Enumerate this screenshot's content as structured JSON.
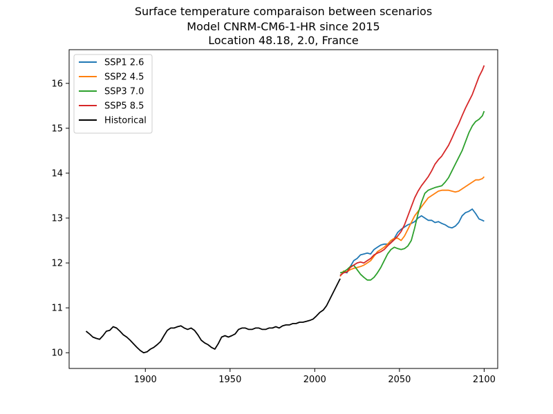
{
  "chart_data": {
    "type": "line",
    "title_lines": [
      "Surface temperature comparaison between scenarios",
      "Model CNRM-CM6-1-HR since 2015",
      "Location 48.18, 2.0, France"
    ],
    "xlabel": "",
    "ylabel": "",
    "xlim": [
      1855,
      2108
    ],
    "ylim": [
      9.65,
      16.75
    ],
    "xticks": [
      1900,
      1950,
      2000,
      2050,
      2100
    ],
    "yticks": [
      10,
      11,
      12,
      13,
      14,
      15,
      16
    ],
    "legend_position": "top-left",
    "series": [
      {
        "name": "SSP1 2.6",
        "color": "#1f77b4",
        "points": [
          [
            2015,
            11.72
          ],
          [
            2017,
            11.8
          ],
          [
            2019,
            11.78
          ],
          [
            2021,
            11.92
          ],
          [
            2023,
            12.05
          ],
          [
            2025,
            12.1
          ],
          [
            2027,
            12.18
          ],
          [
            2029,
            12.2
          ],
          [
            2031,
            12.22
          ],
          [
            2033,
            12.2
          ],
          [
            2035,
            12.3
          ],
          [
            2037,
            12.35
          ],
          [
            2039,
            12.4
          ],
          [
            2041,
            12.42
          ],
          [
            2043,
            12.42
          ],
          [
            2045,
            12.45
          ],
          [
            2047,
            12.55
          ],
          [
            2049,
            12.68
          ],
          [
            2051,
            12.75
          ],
          [
            2053,
            12.8
          ],
          [
            2055,
            12.85
          ],
          [
            2057,
            12.88
          ],
          [
            2059,
            12.92
          ],
          [
            2061,
            13.0
          ],
          [
            2063,
            13.05
          ],
          [
            2065,
            13.0
          ],
          [
            2067,
            12.95
          ],
          [
            2069,
            12.95
          ],
          [
            2071,
            12.9
          ],
          [
            2073,
            12.92
          ],
          [
            2075,
            12.88
          ],
          [
            2077,
            12.85
          ],
          [
            2079,
            12.8
          ],
          [
            2081,
            12.78
          ],
          [
            2083,
            12.82
          ],
          [
            2085,
            12.9
          ],
          [
            2087,
            13.05
          ],
          [
            2089,
            13.12
          ],
          [
            2091,
            13.15
          ],
          [
            2093,
            13.2
          ],
          [
            2095,
            13.1
          ],
          [
            2097,
            12.98
          ],
          [
            2099,
            12.95
          ],
          [
            2100,
            12.93
          ]
        ]
      },
      {
        "name": "SSP2 4.5",
        "color": "#ff7f0e",
        "points": [
          [
            2015,
            11.7
          ],
          [
            2017,
            11.82
          ],
          [
            2019,
            11.8
          ],
          [
            2021,
            11.85
          ],
          [
            2023,
            11.88
          ],
          [
            2025,
            11.9
          ],
          [
            2027,
            11.92
          ],
          [
            2029,
            11.95
          ],
          [
            2031,
            12.0
          ],
          [
            2033,
            12.05
          ],
          [
            2035,
            12.15
          ],
          [
            2037,
            12.25
          ],
          [
            2039,
            12.3
          ],
          [
            2041,
            12.35
          ],
          [
            2043,
            12.42
          ],
          [
            2045,
            12.5
          ],
          [
            2047,
            12.55
          ],
          [
            2049,
            12.55
          ],
          [
            2051,
            12.5
          ],
          [
            2053,
            12.6
          ],
          [
            2055,
            12.75
          ],
          [
            2057,
            12.9
          ],
          [
            2059,
            13.05
          ],
          [
            2061,
            13.15
          ],
          [
            2063,
            13.25
          ],
          [
            2065,
            13.35
          ],
          [
            2067,
            13.45
          ],
          [
            2069,
            13.5
          ],
          [
            2071,
            13.55
          ],
          [
            2073,
            13.6
          ],
          [
            2075,
            13.62
          ],
          [
            2077,
            13.62
          ],
          [
            2079,
            13.62
          ],
          [
            2081,
            13.6
          ],
          [
            2083,
            13.58
          ],
          [
            2085,
            13.6
          ],
          [
            2087,
            13.65
          ],
          [
            2089,
            13.7
          ],
          [
            2091,
            13.75
          ],
          [
            2093,
            13.8
          ],
          [
            2095,
            13.85
          ],
          [
            2097,
            13.85
          ],
          [
            2099,
            13.88
          ],
          [
            2100,
            13.92
          ]
        ]
      },
      {
        "name": "SSP3 7.0",
        "color": "#2ca02c",
        "points": [
          [
            2015,
            11.78
          ],
          [
            2017,
            11.8
          ],
          [
            2019,
            11.85
          ],
          [
            2021,
            11.92
          ],
          [
            2023,
            11.95
          ],
          [
            2025,
            11.85
          ],
          [
            2027,
            11.75
          ],
          [
            2029,
            11.68
          ],
          [
            2031,
            11.62
          ],
          [
            2033,
            11.62
          ],
          [
            2035,
            11.68
          ],
          [
            2037,
            11.78
          ],
          [
            2039,
            11.9
          ],
          [
            2041,
            12.05
          ],
          [
            2043,
            12.2
          ],
          [
            2045,
            12.3
          ],
          [
            2047,
            12.35
          ],
          [
            2049,
            12.32
          ],
          [
            2051,
            12.3
          ],
          [
            2053,
            12.32
          ],
          [
            2055,
            12.38
          ],
          [
            2057,
            12.5
          ],
          [
            2059,
            12.78
          ],
          [
            2061,
            13.1
          ],
          [
            2063,
            13.35
          ],
          [
            2065,
            13.55
          ],
          [
            2067,
            13.62
          ],
          [
            2069,
            13.65
          ],
          [
            2071,
            13.68
          ],
          [
            2073,
            13.7
          ],
          [
            2075,
            13.72
          ],
          [
            2077,
            13.8
          ],
          [
            2079,
            13.9
          ],
          [
            2081,
            14.05
          ],
          [
            2083,
            14.2
          ],
          [
            2085,
            14.35
          ],
          [
            2087,
            14.5
          ],
          [
            2089,
            14.7
          ],
          [
            2091,
            14.9
          ],
          [
            2093,
            15.05
          ],
          [
            2095,
            15.15
          ],
          [
            2097,
            15.2
          ],
          [
            2099,
            15.28
          ],
          [
            2100,
            15.38
          ]
        ]
      },
      {
        "name": "SSP5 8.5",
        "color": "#d62728",
        "points": [
          [
            2015,
            11.72
          ],
          [
            2017,
            11.78
          ],
          [
            2019,
            11.8
          ],
          [
            2021,
            11.9
          ],
          [
            2023,
            11.95
          ],
          [
            2025,
            12.0
          ],
          [
            2027,
            12.02
          ],
          [
            2029,
            12.0
          ],
          [
            2031,
            12.05
          ],
          [
            2033,
            12.1
          ],
          [
            2035,
            12.18
          ],
          [
            2037,
            12.22
          ],
          [
            2039,
            12.25
          ],
          [
            2041,
            12.3
          ],
          [
            2043,
            12.38
          ],
          [
            2045,
            12.45
          ],
          [
            2047,
            12.52
          ],
          [
            2049,
            12.6
          ],
          [
            2051,
            12.7
          ],
          [
            2053,
            12.85
          ],
          [
            2055,
            13.05
          ],
          [
            2057,
            13.25
          ],
          [
            2059,
            13.45
          ],
          [
            2061,
            13.6
          ],
          [
            2063,
            13.72
          ],
          [
            2065,
            13.82
          ],
          [
            2067,
            13.92
          ],
          [
            2069,
            14.05
          ],
          [
            2071,
            14.2
          ],
          [
            2073,
            14.3
          ],
          [
            2075,
            14.38
          ],
          [
            2077,
            14.5
          ],
          [
            2079,
            14.62
          ],
          [
            2081,
            14.78
          ],
          [
            2083,
            14.95
          ],
          [
            2085,
            15.1
          ],
          [
            2087,
            15.28
          ],
          [
            2089,
            15.45
          ],
          [
            2091,
            15.6
          ],
          [
            2093,
            15.75
          ],
          [
            2095,
            15.95
          ],
          [
            2097,
            16.15
          ],
          [
            2099,
            16.3
          ],
          [
            2100,
            16.4
          ]
        ]
      },
      {
        "name": "Historical",
        "color": "#000000",
        "points": [
          [
            1865,
            10.48
          ],
          [
            1867,
            10.42
          ],
          [
            1869,
            10.35
          ],
          [
            1871,
            10.32
          ],
          [
            1873,
            10.3
          ],
          [
            1875,
            10.38
          ],
          [
            1877,
            10.48
          ],
          [
            1879,
            10.5
          ],
          [
            1881,
            10.58
          ],
          [
            1883,
            10.55
          ],
          [
            1885,
            10.48
          ],
          [
            1887,
            10.4
          ],
          [
            1889,
            10.35
          ],
          [
            1891,
            10.28
          ],
          [
            1893,
            10.2
          ],
          [
            1895,
            10.12
          ],
          [
            1897,
            10.05
          ],
          [
            1899,
            10.0
          ],
          [
            1901,
            10.02
          ],
          [
            1903,
            10.08
          ],
          [
            1905,
            10.12
          ],
          [
            1907,
            10.18
          ],
          [
            1909,
            10.25
          ],
          [
            1911,
            10.38
          ],
          [
            1913,
            10.5
          ],
          [
            1915,
            10.55
          ],
          [
            1917,
            10.55
          ],
          [
            1919,
            10.58
          ],
          [
            1921,
            10.6
          ],
          [
            1923,
            10.55
          ],
          [
            1925,
            10.52
          ],
          [
            1927,
            10.55
          ],
          [
            1929,
            10.5
          ],
          [
            1931,
            10.4
          ],
          [
            1933,
            10.28
          ],
          [
            1935,
            10.22
          ],
          [
            1937,
            10.18
          ],
          [
            1939,
            10.12
          ],
          [
            1941,
            10.08
          ],
          [
            1943,
            10.2
          ],
          [
            1945,
            10.35
          ],
          [
            1947,
            10.38
          ],
          [
            1949,
            10.35
          ],
          [
            1951,
            10.38
          ],
          [
            1953,
            10.42
          ],
          [
            1955,
            10.52
          ],
          [
            1957,
            10.55
          ],
          [
            1959,
            10.55
          ],
          [
            1961,
            10.52
          ],
          [
            1963,
            10.52
          ],
          [
            1965,
            10.55
          ],
          [
            1967,
            10.55
          ],
          [
            1969,
            10.52
          ],
          [
            1971,
            10.52
          ],
          [
            1973,
            10.55
          ],
          [
            1975,
            10.55
          ],
          [
            1977,
            10.58
          ],
          [
            1979,
            10.55
          ],
          [
            1981,
            10.6
          ],
          [
            1983,
            10.62
          ],
          [
            1985,
            10.62
          ],
          [
            1987,
            10.65
          ],
          [
            1989,
            10.65
          ],
          [
            1991,
            10.68
          ],
          [
            1993,
            10.68
          ],
          [
            1995,
            10.7
          ],
          [
            1997,
            10.72
          ],
          [
            1999,
            10.75
          ],
          [
            2001,
            10.82
          ],
          [
            2003,
            10.9
          ],
          [
            2005,
            10.95
          ],
          [
            2007,
            11.05
          ],
          [
            2009,
            11.2
          ],
          [
            2011,
            11.35
          ],
          [
            2013,
            11.5
          ],
          [
            2015,
            11.65
          ]
        ]
      }
    ]
  }
}
